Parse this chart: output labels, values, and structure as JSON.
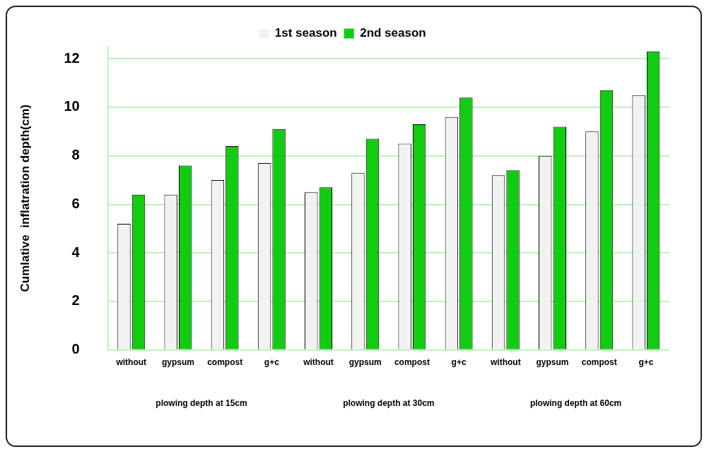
{
  "chart_data": {
    "type": "bar",
    "ylabel": "Cumlative  inflatration depth(cm)",
    "categories": [
      "without",
      "gypsum",
      "compost",
      "g+c",
      "without",
      "gypsum",
      "compost",
      "g+c",
      "without",
      "gypsum",
      "compost",
      "g+c"
    ],
    "series": [
      {
        "name": "1st season",
        "color": "#f2f2f2",
        "values": [
          5.2,
          6.4,
          7.0,
          7.7,
          6.5,
          7.3,
          8.5,
          9.6,
          7.2,
          8.0,
          9.0,
          10.5
        ]
      },
      {
        "name": "2nd season",
        "color": "#11cc11",
        "values": [
          6.4,
          7.6,
          8.4,
          9.1,
          6.7,
          8.7,
          9.3,
          10.4,
          7.4,
          9.2,
          10.7,
          12.3
        ]
      }
    ],
    "annotations": [
      "plowing depth at 15cm",
      "plowing depth at 30cm",
      "plowing depth at 60cm"
    ],
    "ylim": [
      0,
      12.5
    ],
    "yticks": [
      0,
      2,
      4,
      6,
      8,
      10,
      12
    ],
    "grid": "y",
    "legend": "top"
  }
}
